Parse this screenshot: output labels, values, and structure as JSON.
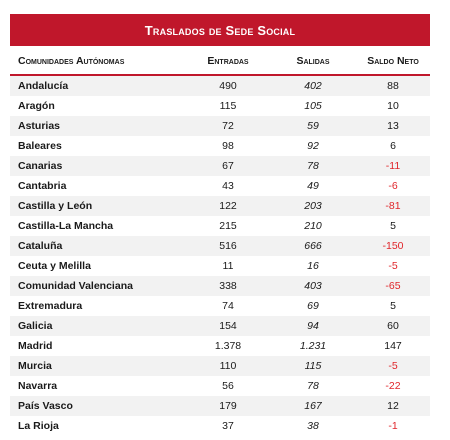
{
  "title": "Traslados de Sede Social",
  "headers": {
    "region": "Comunidades Autónomas",
    "in": "Entradas",
    "out": "Salidas",
    "net": "Saldo Neto"
  },
  "colors": {
    "accent": "#c0172b",
    "negative": "#e0262b",
    "row_shade": "#f2f2f2"
  },
  "rows": [
    {
      "name": "Andalucía",
      "in": "490",
      "out": "402",
      "net": "88",
      "negative": false
    },
    {
      "name": "Aragón",
      "in": "115",
      "out": "105",
      "net": "10",
      "negative": false
    },
    {
      "name": "Asturias",
      "in": "72",
      "out": "59",
      "net": "13",
      "negative": false
    },
    {
      "name": "Baleares",
      "in": "98",
      "out": "92",
      "net": "6",
      "negative": false
    },
    {
      "name": "Canarias",
      "in": "67",
      "out": "78",
      "net": "-11",
      "negative": true
    },
    {
      "name": "Cantabria",
      "in": "43",
      "out": "49",
      "net": "-6",
      "negative": true
    },
    {
      "name": "Castilla y León",
      "in": "122",
      "out": "203",
      "net": "-81",
      "negative": true
    },
    {
      "name": "Castilla-La Mancha",
      "in": "215",
      "out": "210",
      "net": "5",
      "negative": false
    },
    {
      "name": "Cataluña",
      "in": "516",
      "out": "666",
      "net": "-150",
      "negative": true
    },
    {
      "name": "Ceuta y Melilla",
      "in": "11",
      "out": "16",
      "net": "-5",
      "negative": true
    },
    {
      "name": "Comunidad Valenciana",
      "in": "338",
      "out": "403",
      "net": "-65",
      "negative": true
    },
    {
      "name": "Extremadura",
      "in": "74",
      "out": "69",
      "net": "5",
      "negative": false
    },
    {
      "name": "Galicia",
      "in": "154",
      "out": "94",
      "net": "60",
      "negative": false
    },
    {
      "name": "Madrid",
      "in": "1.378",
      "out": "1.231",
      "net": "147",
      "negative": false
    },
    {
      "name": "Murcia",
      "in": "110",
      "out": "115",
      "net": "-5",
      "negative": true
    },
    {
      "name": "Navarra",
      "in": "56",
      "out": "78",
      "net": "-22",
      "negative": true
    },
    {
      "name": "País Vasco",
      "in": "179",
      "out": "167",
      "net": "12",
      "negative": false
    },
    {
      "name": "La Rioja",
      "in": "37",
      "out": "38",
      "net": "-1",
      "negative": true
    }
  ]
}
